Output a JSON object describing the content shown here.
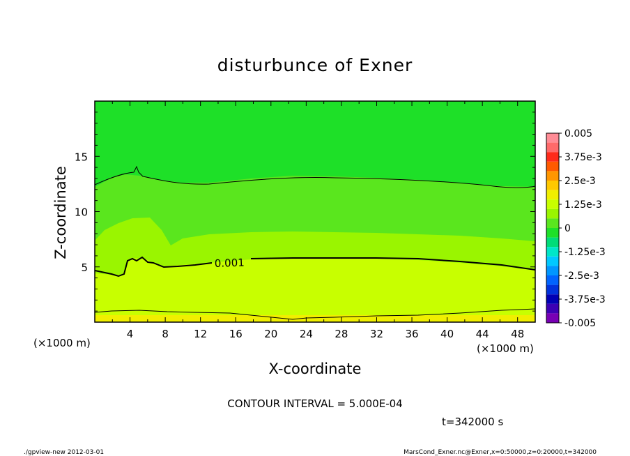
{
  "chart_data": {
    "type": "heatmap",
    "title": "disturbunce of Exner",
    "xlabel": "X-coordinate",
    "ylabel": "Z-coordinate",
    "x_unit": "(×1000 m)",
    "y_unit": "(×1000 m)",
    "xlim": [
      0,
      50
    ],
    "ylim": [
      0,
      20
    ],
    "x_ticks": [
      4,
      8,
      12,
      16,
      20,
      24,
      28,
      32,
      36,
      40,
      44,
      48
    ],
    "y_ticks": [
      5,
      10,
      15
    ],
    "contour_label": "0.001",
    "contour_interval": "CONTOUR INTERVAL = 5.000E-04",
    "time": "t=342000 s",
    "colorbar": {
      "labels": [
        "0.005",
        "3.75e-3",
        "2.5e-3",
        "1.25e-3",
        "0",
        "-1.25e-3",
        "-2.5e-3",
        "-3.75e-3",
        "-0.005"
      ],
      "bins": [
        {
          "from": 0.0045,
          "to": 0.005,
          "color": "#ff8c96"
        },
        {
          "from": 0.004,
          "to": 0.0045,
          "color": "#ff6a6a"
        },
        {
          "from": 0.0035,
          "to": 0.004,
          "color": "#ff2a1a"
        },
        {
          "from": 0.003,
          "to": 0.0035,
          "color": "#ff5a00"
        },
        {
          "from": 0.0025,
          "to": 0.003,
          "color": "#ff9600"
        },
        {
          "from": 0.002,
          "to": 0.0025,
          "color": "#ffc800"
        },
        {
          "from": 0.0015,
          "to": 0.002,
          "color": "#f0ef00"
        },
        {
          "from": 0.001,
          "to": 0.0015,
          "color": "#c8ff00"
        },
        {
          "from": 0.0005,
          "to": 0.001,
          "color": "#9af500"
        },
        {
          "from": 0,
          "to": 0.0005,
          "color": "#5ae61e"
        },
        {
          "from": -0.0005,
          "to": 0,
          "color": "#1ee028"
        },
        {
          "from": -0.001,
          "to": -0.0005,
          "color": "#00dc78"
        },
        {
          "from": -0.0015,
          "to": -0.001,
          "color": "#00e6c8"
        },
        {
          "from": -0.002,
          "to": -0.0015,
          "color": "#00c8ff"
        },
        {
          "from": -0.0025,
          "to": -0.002,
          "color": "#0096ff"
        },
        {
          "from": -0.003,
          "to": -0.0025,
          "color": "#0064ff"
        },
        {
          "from": -0.0035,
          "to": -0.003,
          "color": "#0032dc"
        },
        {
          "from": -0.004,
          "to": -0.0035,
          "color": "#0000b4"
        },
        {
          "from": -0.0045,
          "to": -0.004,
          "color": "#3c00b4"
        },
        {
          "from": -0.005,
          "to": -0.0045,
          "color": "#7800b4"
        }
      ]
    },
    "field_bands": [
      {
        "level": "lt-0",
        "color": "#1ee028"
      },
      {
        "level": "0-5e-4",
        "color": "#5ae61e"
      },
      {
        "level": "5e-4-1e-3",
        "color": "#9af500"
      },
      {
        "level": "1e-3-1.5e-3",
        "color": "#c8ff00"
      },
      {
        "level": "gt-1.5e-3",
        "color": "#f0ef00"
      }
    ]
  },
  "footer": {
    "left": "./gpview-new   2012-03-01",
    "right": "MarsCond_Exner.nc@Exner,x=0:50000,z=0:20000,t=342000"
  }
}
